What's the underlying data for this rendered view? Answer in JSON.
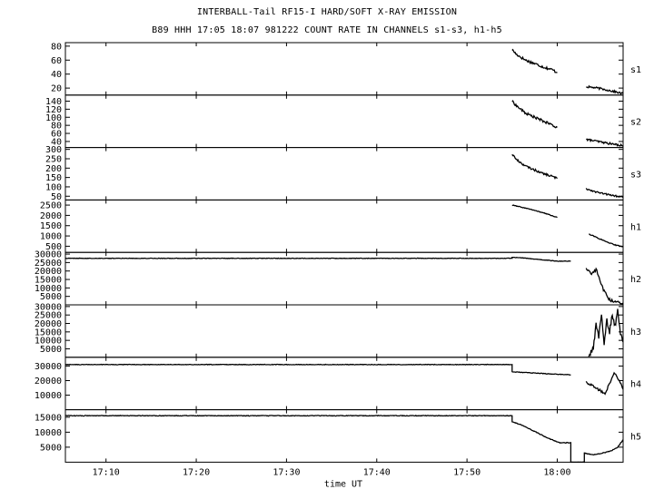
{
  "title": "INTERBALL-Tail RF15-I HARD/SOFT X-RAY EMISSION",
  "subtitle": "B89 HHH 17:05 18:07 981222  COUNT RATE IN CHANNELS s1-s3, h1-h5",
  "chart_data": {
    "type": "line",
    "xlabel": "time UT",
    "x_ticks": [
      "17:10",
      "17:20",
      "17:30",
      "17:40",
      "17:50",
      "18:00"
    ],
    "x_tick_minutes": [
      10,
      20,
      30,
      40,
      50,
      60
    ],
    "x_range_minutes": [
      5.5,
      67.3
    ],
    "panels": [
      {
        "name": "s1",
        "ylim": [
          10,
          85
        ],
        "yticks": [
          20,
          40,
          60,
          80
        ],
        "segments": [
          {
            "points": [
              [
                55.0,
                75
              ],
              [
                55.5,
                68
              ],
              [
                56.5,
                60
              ],
              [
                57.5,
                55
              ],
              [
                58.5,
                50
              ],
              [
                59.5,
                46
              ],
              [
                60.0,
                42
              ]
            ],
            "noise": 0.2
          },
          {
            "points": [
              [
                63.2,
                22
              ],
              [
                64.5,
                20
              ],
              [
                66.0,
                16
              ],
              [
                67.3,
                12
              ]
            ],
            "noise": 0.15
          }
        ]
      },
      {
        "name": "s2",
        "ylim": [
          25,
          155
        ],
        "yticks": [
          40,
          60,
          80,
          100,
          120,
          140
        ],
        "segments": [
          {
            "points": [
              [
                55.0,
                140
              ],
              [
                55.5,
                128
              ],
              [
                56.5,
                110
              ],
              [
                57.5,
                100
              ],
              [
                58.5,
                90
              ],
              [
                59.5,
                80
              ],
              [
                60.0,
                75
              ]
            ],
            "noise": 0.18
          },
          {
            "points": [
              [
                63.2,
                45
              ],
              [
                64.5,
                40
              ],
              [
                66.0,
                34
              ],
              [
                67.3,
                30
              ]
            ],
            "noise": 0.15
          }
        ]
      },
      {
        "name": "s3",
        "ylim": [
          30,
          310
        ],
        "yticks": [
          50,
          100,
          150,
          200,
          250,
          300
        ],
        "segments": [
          {
            "points": [
              [
                55.0,
                275
              ],
              [
                55.5,
                245
              ],
              [
                56.5,
                210
              ],
              [
                57.5,
                190
              ],
              [
                58.5,
                170
              ],
              [
                59.5,
                155
              ],
              [
                60.0,
                145
              ]
            ],
            "noise": 0.15
          },
          {
            "points": [
              [
                63.2,
                90
              ],
              [
                64.5,
                70
              ],
              [
                66.0,
                55
              ],
              [
                67.3,
                45
              ]
            ],
            "noise": 0.12
          }
        ]
      },
      {
        "name": "h1",
        "ylim": [
          200,
          2750
        ],
        "yticks": [
          500,
          1000,
          1500,
          2000,
          2500
        ],
        "segments": [
          {
            "points": [
              [
                55.0,
                2500
              ],
              [
                56.0,
                2400
              ],
              [
                57.0,
                2300
              ],
              [
                58.0,
                2180
              ],
              [
                59.0,
                2050
              ],
              [
                60.0,
                1900
              ]
            ],
            "noise": 0.05
          },
          {
            "points": [
              [
                63.5,
                1100
              ],
              [
                64.5,
                900
              ],
              [
                65.5,
                700
              ],
              [
                66.5,
                550
              ],
              [
                67.3,
                480
              ]
            ],
            "noise": 0.06
          }
        ]
      },
      {
        "name": "h2",
        "ylim": [
          0,
          31000
        ],
        "yticks": [
          5000,
          10000,
          15000,
          20000,
          25000,
          30000
        ],
        "segments": [
          {
            "points": [
              [
                5.5,
                27500
              ],
              [
                55.0,
                27500
              ],
              [
                55.0,
                28000
              ],
              [
                56.0,
                27800
              ],
              [
                57.0,
                27300
              ],
              [
                58.0,
                26800
              ],
              [
                59.0,
                26300
              ],
              [
                60.0,
                25800
              ],
              [
                61.5,
                25800
              ]
            ],
            "noise": 0.04
          },
          {
            "points": [
              [
                63.2,
                22000
              ],
              [
                63.8,
                18000
              ],
              [
                64.3,
                21000
              ],
              [
                64.8,
                14000
              ],
              [
                65.2,
                8000
              ],
              [
                65.8,
                3000
              ],
              [
                66.5,
                1500
              ],
              [
                67.3,
                1200
              ]
            ],
            "noise": 0.25
          }
        ]
      },
      {
        "name": "h3",
        "ylim": [
          0,
          31000
        ],
        "yticks": [
          5000,
          10000,
          15000,
          20000,
          25000,
          30000
        ],
        "segments": [
          {
            "points": [
              [
                63.5,
                500
              ],
              [
                64.0,
                5000
              ],
              [
                64.3,
                20000
              ],
              [
                64.6,
                12000
              ],
              [
                64.9,
                26000
              ],
              [
                65.2,
                8000
              ],
              [
                65.5,
                22000
              ],
              [
                65.8,
                15000
              ],
              [
                66.1,
                25000
              ],
              [
                66.4,
                18000
              ],
              [
                66.7,
                28000
              ],
              [
                67.0,
                14000
              ],
              [
                67.3,
                9000
              ]
            ],
            "noise": 0.4
          }
        ]
      },
      {
        "name": "h4",
        "ylim": [
          0,
          36000
        ],
        "yticks": [
          10000,
          20000,
          30000
        ],
        "segments": [
          {
            "points": [
              [
                5.5,
                31000
              ],
              [
                55.0,
                31000
              ],
              [
                55.0,
                26000
              ],
              [
                56.5,
                25500
              ],
              [
                58.0,
                25000
              ],
              [
                59.5,
                24500
              ],
              [
                61.5,
                24000
              ]
            ],
            "noise": 0.04
          },
          {
            "points": [
              [
                63.2,
                19000
              ],
              [
                64.0,
                16000
              ],
              [
                64.8,
                13000
              ],
              [
                65.3,
                11000
              ],
              [
                65.8,
                18000
              ],
              [
                66.3,
                25000
              ],
              [
                66.8,
                21000
              ],
              [
                67.3,
                14000
              ]
            ],
            "noise": 0.18
          }
        ]
      },
      {
        "name": "h5",
        "ylim": [
          0,
          17500
        ],
        "yticks": [
          5000,
          10000,
          15000
        ],
        "segments": [
          {
            "points": [
              [
                5.5,
                15500
              ],
              [
                55.0,
                15500
              ],
              [
                55.0,
                13500
              ],
              [
                56.0,
                12500
              ],
              [
                57.0,
                11000
              ],
              [
                58.0,
                9500
              ],
              [
                59.0,
                8000
              ],
              [
                60.0,
                6800
              ],
              [
                60.3,
                6500
              ],
              [
                61.5,
                6500
              ],
              [
                61.5,
                0
              ],
              [
                63.0,
                0
              ],
              [
                63.0,
                3000
              ],
              [
                64.0,
                2500
              ],
              [
                65.0,
                3000
              ],
              [
                66.0,
                3800
              ],
              [
                66.7,
                5000
              ],
              [
                67.3,
                7500
              ]
            ],
            "noise": 0.05
          }
        ]
      }
    ]
  }
}
